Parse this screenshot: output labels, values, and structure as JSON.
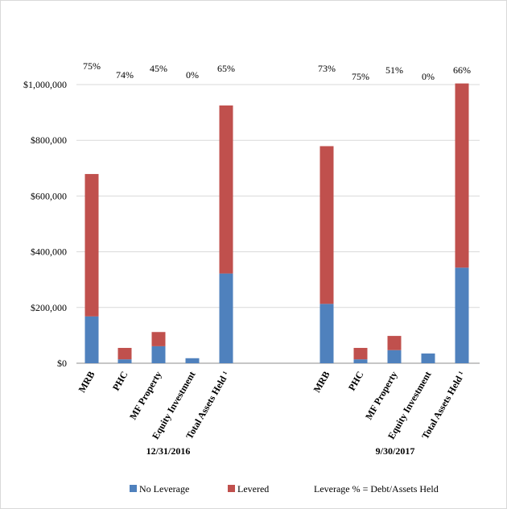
{
  "chart_data": {
    "type": "bar",
    "stacked": true,
    "ylim": [
      0,
      1000000
    ],
    "yticks": [
      {
        "value": 0,
        "label": "$0"
      },
      {
        "value": 200000,
        "label": "$200,000"
      },
      {
        "value": 400000,
        "label": "$400,000"
      },
      {
        "value": 600000,
        "label": "$600,000"
      },
      {
        "value": 800000,
        "label": "$800,000"
      },
      {
        "value": 1000000,
        "label": "$1,000,000"
      }
    ],
    "grid": true,
    "legend_position": "bottom",
    "series": [
      {
        "key": "no_leverage",
        "name": "No Leverage",
        "color": "#4f81bd"
      },
      {
        "key": "levered",
        "name": "Levered",
        "color": "#c0504d"
      }
    ],
    "legend_note": "Leverage % = Debt/Assets Held",
    "groups": [
      {
        "label": "12/31/2016",
        "categories": [
          "MRB",
          "PHC",
          "MF Property",
          "Equity Investment",
          "Total Assets Held ¹"
        ],
        "no_leverage": [
          168000,
          14000,
          61000,
          18000,
          322000
        ],
        "levered": [
          511000,
          41000,
          51000,
          0,
          603000
        ],
        "leverage_pct": [
          "75%",
          "74%",
          "45%",
          "0%",
          "65%"
        ]
      },
      {
        "label": "9/30/2017",
        "categories": [
          "MRB",
          "PHC",
          "MF Property",
          "Equity Investment",
          "Total Assets Held ¹"
        ],
        "no_leverage": [
          213000,
          14000,
          47000,
          35000,
          343000
        ],
        "levered": [
          566000,
          41000,
          51000,
          0,
          661000
        ],
        "leverage_pct": [
          "73%",
          "75%",
          "51%",
          "0%",
          "66%"
        ]
      }
    ]
  }
}
